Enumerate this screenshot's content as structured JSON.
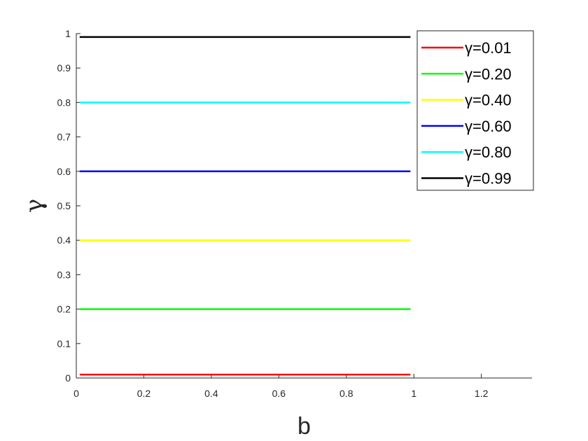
{
  "chart_data": {
    "type": "line",
    "xlabel": "b",
    "ylabel": "γ",
    "xlim": [
      0,
      1.35
    ],
    "ylim": [
      0,
      1
    ],
    "xticks": [
      "0",
      "0.2",
      "0.4",
      "0.6",
      "0.8",
      "1",
      "1.2"
    ],
    "yticks": [
      "0",
      "0.1",
      "0.2",
      "0.3",
      "0.4",
      "0.5",
      "0.6",
      "0.7",
      "0.8",
      "0.9",
      "1"
    ],
    "grid": false,
    "legend_position": "top-right",
    "series": [
      {
        "name": "γ=0.01",
        "color": "#ff0000",
        "x": [
          0.01,
          0.99
        ],
        "y": [
          0.01,
          0.01
        ]
      },
      {
        "name": "γ=0.20",
        "color": "#00ff00",
        "x": [
          0.01,
          0.99
        ],
        "y": [
          0.2,
          0.2
        ]
      },
      {
        "name": "γ=0.40",
        "color": "#ffff00",
        "x": [
          0.01,
          0.99
        ],
        "y": [
          0.4,
          0.4
        ]
      },
      {
        "name": "γ=0.60",
        "color": "#0000ff",
        "x": [
          0.01,
          0.99
        ],
        "y": [
          0.6,
          0.6
        ]
      },
      {
        "name": "γ=0.80",
        "color": "#00ffff",
        "x": [
          0.01,
          0.99
        ],
        "y": [
          0.8,
          0.8
        ]
      },
      {
        "name": "γ=0.99",
        "color": "#000000",
        "x": [
          0.01,
          0.99
        ],
        "y": [
          0.99,
          0.99
        ]
      }
    ]
  }
}
